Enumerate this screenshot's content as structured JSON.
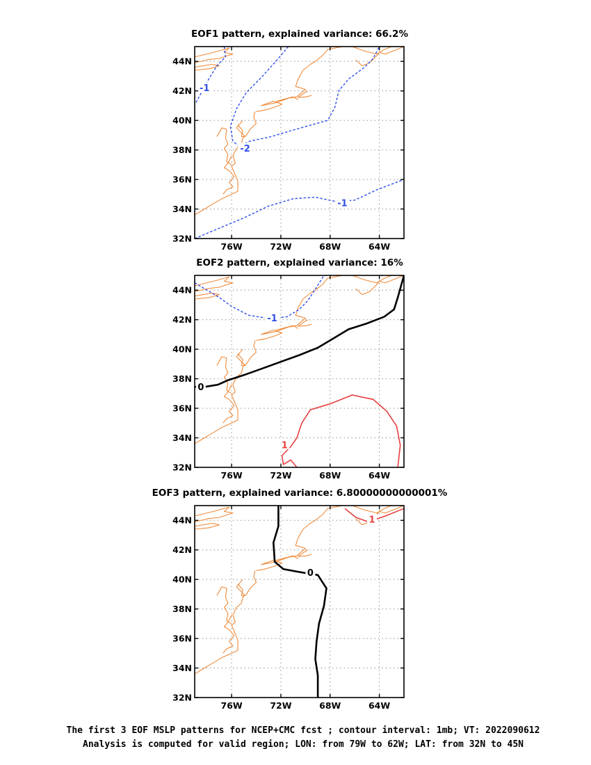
{
  "colors": {
    "negative_contour": "#2f4fe8",
    "positive_contour": "#e84040",
    "zero_contour": "#000000",
    "coastline": "#ef8a3a",
    "grid": "#9a9a9a"
  },
  "axes": {
    "x_ticks": [
      "76W",
      "72W",
      "68W",
      "64W"
    ],
    "y_ticks": [
      "44N",
      "42N",
      "40N",
      "38N",
      "36N",
      "34N",
      "32N"
    ],
    "lon_range": [
      -79,
      -62
    ],
    "lat_range": [
      32,
      45
    ]
  },
  "panels": [
    {
      "title": "EOF1 pattern, explained variance: 66.2%",
      "contour_labels": [
        "-1",
        "-2",
        "-1"
      ]
    },
    {
      "title": "EOF2 pattern, explained variance: 16%",
      "contour_labels": [
        "-1",
        "0",
        "1"
      ]
    },
    {
      "title": "EOF3 pattern, explained variance: 6.80000000000001%",
      "contour_labels": [
        "0",
        "1"
      ]
    }
  ],
  "caption": {
    "line1": "The first 3 EOF MSLP patterns for NCEP+CMC fcst ; contour interval: 1mb; VT: 2022090612",
    "line2": "Analysis is computed for valid region; LON: from 79W to 62W; LAT: from 32N to 45N"
  }
}
